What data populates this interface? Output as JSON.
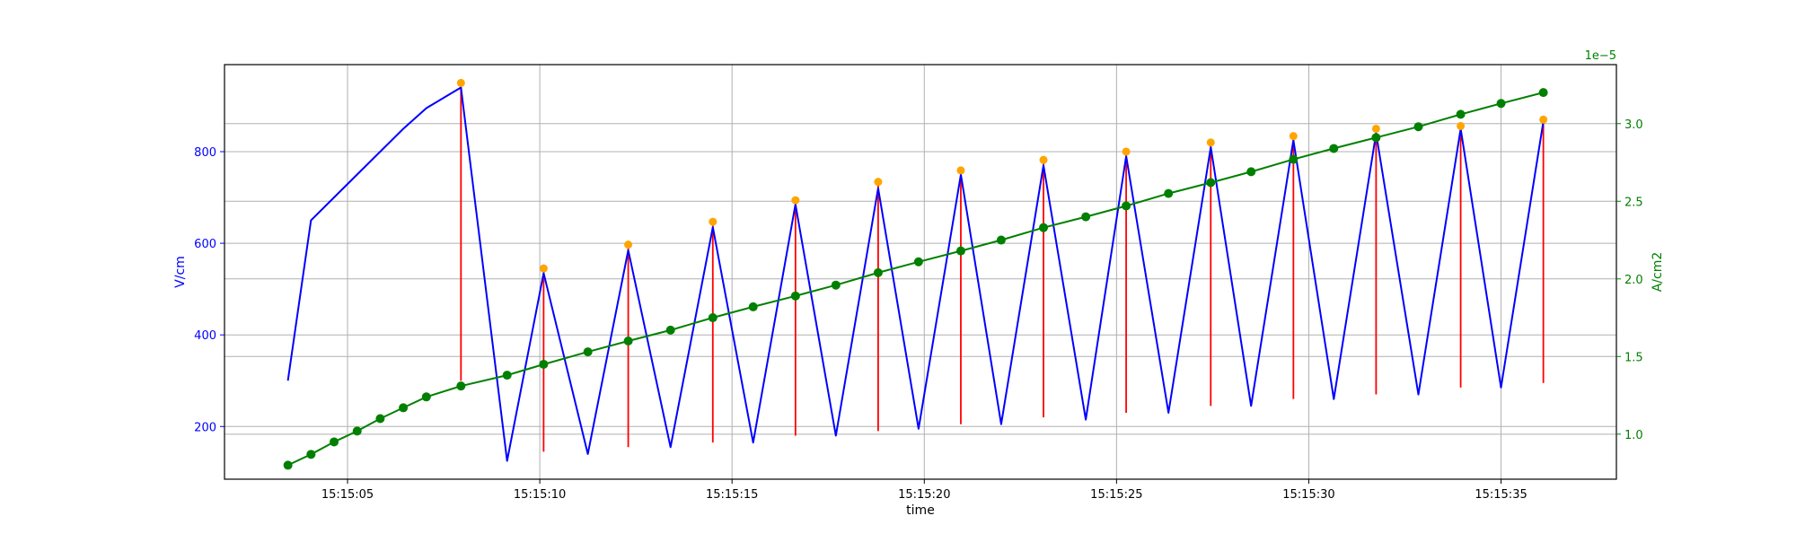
{
  "chart_data": {
    "type": "line",
    "xlabel": "time",
    "ylabel_left": "V/cm",
    "ylabel_right": "A/cm2",
    "right_axis_offset_label": "1e−5",
    "x_range": [
      1.8,
      38.0
    ],
    "left_ylim": [
      85,
      990
    ],
    "right_ylim": [
      0.71,
      3.38
    ],
    "x_ticks": [
      {
        "value": 5,
        "label": "15:15:05"
      },
      {
        "value": 10,
        "label": "15:15:10"
      },
      {
        "value": 15,
        "label": "15:15:15"
      },
      {
        "value": 20,
        "label": "15:15:20"
      },
      {
        "value": 25,
        "label": "15:15:25"
      },
      {
        "value": 30,
        "label": "15:15:30"
      },
      {
        "value": 35,
        "label": "15:15:35"
      }
    ],
    "left_ticks": [
      200,
      400,
      600,
      800
    ],
    "right_ticks": [
      {
        "value": 1.0,
        "label": "1.0"
      },
      {
        "value": 1.5,
        "label": "1.5"
      },
      {
        "value": 2.0,
        "label": "2.0"
      },
      {
        "value": 2.5,
        "label": "2.5"
      },
      {
        "value": 3.0,
        "label": "3.0"
      }
    ],
    "grid": true,
    "colors": {
      "voltage": "#0000ff",
      "peaks": "#ffa500",
      "drops": "#ff0000",
      "current": "#008000",
      "axis": "#000000",
      "grid": "#b0b0b0"
    },
    "voltage_series": {
      "axis": "left",
      "x": [
        3.45,
        4.05,
        4.65,
        5.25,
        5.85,
        6.45,
        7.05,
        7.95,
        9.15,
        10.1,
        11.25,
        12.3,
        13.4,
        14.5,
        15.55,
        16.65,
        17.7,
        18.8,
        19.85,
        20.95,
        22.0,
        23.1,
        24.2,
        25.25,
        26.35,
        27.45,
        28.5,
        29.6,
        30.65,
        31.75,
        32.85,
        33.95,
        35.0,
        36.1
      ],
      "y": [
        300,
        650,
        700,
        750,
        800,
        850,
        895,
        940,
        125,
        535,
        140,
        585,
        155,
        635,
        165,
        685,
        180,
        720,
        195,
        750,
        205,
        770,
        215,
        790,
        230,
        810,
        245,
        825,
        260,
        840,
        270,
        850,
        285,
        865
      ]
    },
    "peak_points": {
      "axis": "left",
      "x": [
        7.95,
        10.1,
        12.3,
        14.5,
        16.65,
        18.8,
        20.95,
        23.1,
        25.25,
        27.45,
        29.6,
        31.75,
        33.95,
        36.1
      ],
      "y": [
        950,
        545,
        597,
        647,
        694,
        734,
        759,
        782,
        800,
        820,
        834,
        850,
        856,
        870
      ]
    },
    "drop_lines": {
      "axis": "left",
      "x": [
        7.95,
        10.1,
        12.3,
        14.5,
        16.65,
        18.8,
        20.95,
        23.1,
        25.25,
        27.45,
        29.6,
        31.75,
        33.95,
        36.1
      ],
      "top": [
        945,
        540,
        592,
        642,
        689,
        729,
        754,
        777,
        795,
        815,
        829,
        845,
        851,
        865
      ],
      "bottom": [
        300,
        145,
        155,
        165,
        180,
        190,
        205,
        220,
        230,
        245,
        260,
        270,
        285,
        295
      ]
    },
    "current_series": {
      "axis": "right",
      "x": [
        3.45,
        4.05,
        4.65,
        5.25,
        5.85,
        6.45,
        7.05,
        7.95,
        9.15,
        10.1,
        11.25,
        12.3,
        13.4,
        14.5,
        15.55,
        16.65,
        17.7,
        18.8,
        19.85,
        20.95,
        22.0,
        23.1,
        24.2,
        25.25,
        26.35,
        27.45,
        28.5,
        29.6,
        30.65,
        31.75,
        32.85,
        33.95,
        35.0,
        36.1
      ],
      "y": [
        0.8,
        0.87,
        0.95,
        1.02,
        1.1,
        1.17,
        1.24,
        1.31,
        1.38,
        1.45,
        1.53,
        1.6,
        1.67,
        1.75,
        1.82,
        1.89,
        1.96,
        2.04,
        2.11,
        2.18,
        2.25,
        2.33,
        2.4,
        2.47,
        2.55,
        2.62,
        2.69,
        2.77,
        2.84,
        2.91,
        2.98,
        3.06,
        3.13,
        3.2
      ]
    }
  }
}
